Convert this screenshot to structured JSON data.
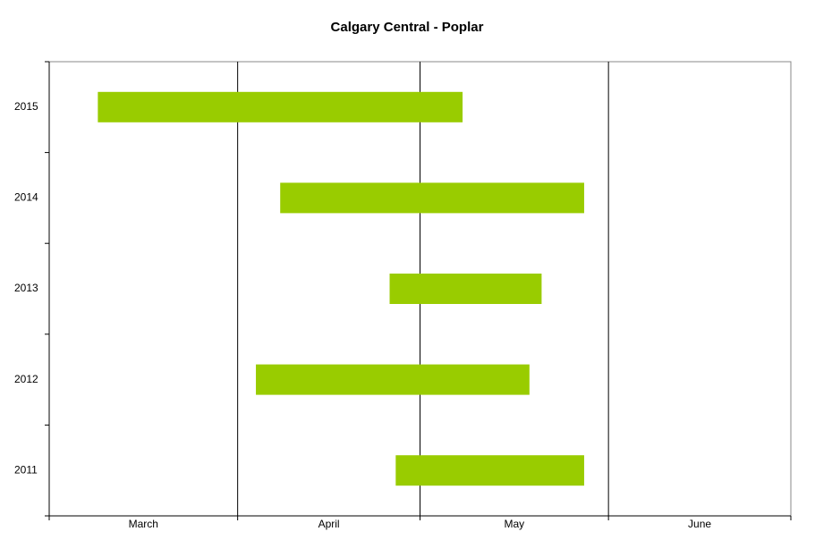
{
  "chart_data": {
    "type": "floating-bar",
    "title": "Calgary Central - Poplar",
    "categories": [
      "2011",
      "2012",
      "2013",
      "2014",
      "2015"
    ],
    "start": [
      117,
      94,
      116,
      98,
      68
    ],
    "end": [
      148,
      139,
      141,
      148,
      128
    ],
    "color": "#99cc00",
    "x_categories": [
      "March",
      "April",
      "May",
      "June"
    ],
    "xlim": [
      60,
      182
    ],
    "xticks": [
      60,
      91,
      121,
      152,
      182
    ],
    "grid": true
  }
}
